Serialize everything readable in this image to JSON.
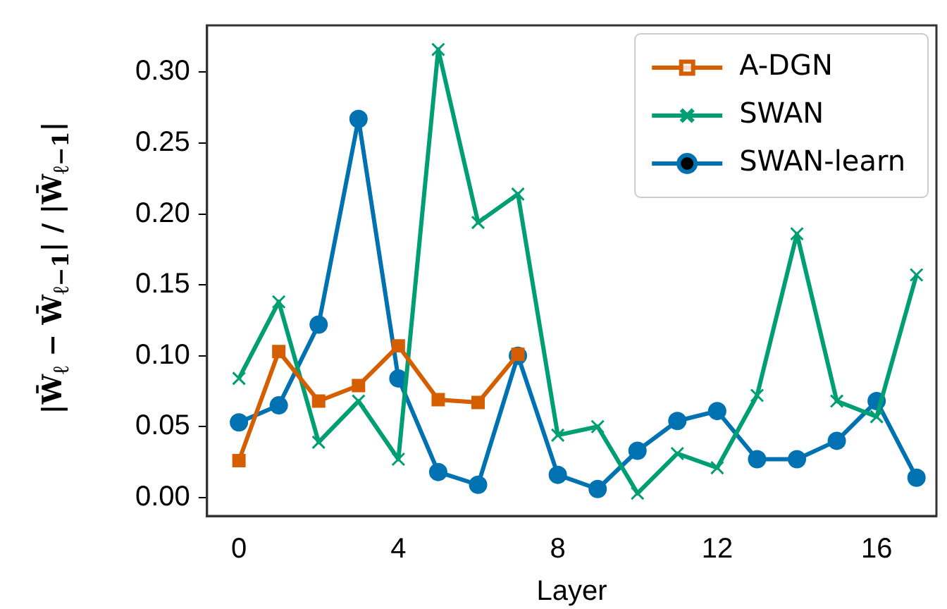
{
  "chart_data": {
    "type": "line",
    "xlabel": "Layer",
    "ylabel": "|W̄$_{ℓ}$ − W̄$_{ℓ−1}$| / |W̄$_{ℓ−1}$|",
    "x": [
      0,
      1,
      2,
      3,
      4,
      5,
      6,
      7,
      8,
      9,
      10,
      11,
      12,
      13,
      14,
      15,
      16,
      17
    ],
    "series": [
      {
        "name": "A-DGN",
        "color": "#d55e00",
        "marker": "square",
        "x": [
          0,
          1,
          2,
          3,
          4,
          5,
          6,
          7
        ],
        "values": [
          0.026,
          0.103,
          0.068,
          0.079,
          0.107,
          0.069,
          0.067,
          0.101
        ]
      },
      {
        "name": "SWAN",
        "color": "#009e73",
        "marker": "cross",
        "values": [
          0.084,
          0.138,
          0.039,
          0.068,
          0.027,
          0.316,
          0.194,
          0.214,
          0.044,
          0.05,
          0.003,
          0.031,
          0.021,
          0.072,
          0.186,
          0.068,
          0.057,
          0.157
        ]
      },
      {
        "name": "SWAN-learn",
        "color": "#0072b2",
        "marker": "circle",
        "values": [
          0.053,
          0.065,
          0.122,
          0.267,
          0.084,
          0.018,
          0.009,
          0.1,
          0.016,
          0.006,
          0.033,
          0.054,
          0.061,
          0.027,
          0.027,
          0.04,
          0.068,
          0.014
        ]
      }
    ],
    "xlim": [
      -0.8,
      17.5
    ],
    "xticks": [
      0,
      4,
      8,
      12,
      16
    ],
    "ylim": [
      -0.013,
      0.333
    ],
    "yticks": [
      {
        "value": 0,
        "label": "0.00"
      },
      0.05,
      {
        "value": 0.1,
        "label": "0.10"
      },
      0.15,
      {
        "value": 0.2,
        "label": "0.20"
      },
      0.25,
      {
        "value": 0.3,
        "label": "0.30"
      }
    ],
    "grid": false,
    "legend": "top right",
    "line_style": "solid"
  }
}
